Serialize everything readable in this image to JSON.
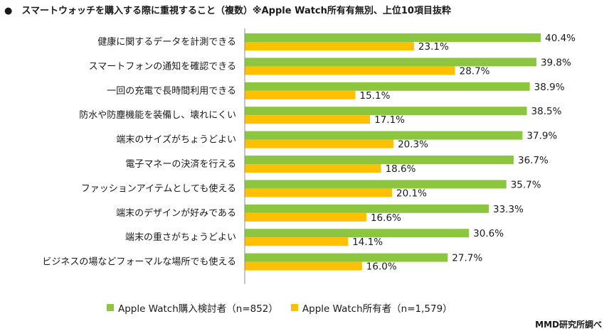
{
  "title": "●　スマートウォッチを購入する際に重視すること（複数）※Apple Watch所有有無別、上位10項目抜粋",
  "credit": "MMD研究所調べ",
  "colors": {
    "series_1": "#8cc63f",
    "series_2": "#ffc000"
  },
  "chart_data": {
    "type": "bar",
    "orientation": "horizontal",
    "categories": [
      "健康に関するデータを計測できる",
      "スマートフォンの通知を確認できる",
      "一回の充電で長時間利用できる",
      "防水や防塵機能を装備し、壊れにくい",
      "端末のサイズがちょうどよい",
      "電子マネーの決済を行える",
      "ファッションアイテムとしても使える",
      "端末のデザインが好みである",
      "端末の重さがちょうどよい",
      "ビジネスの場などフォーマルな場所でも使える"
    ],
    "series": [
      {
        "name": "Apple Watch購入検討者（n=852）",
        "values": [
          40.4,
          39.8,
          38.9,
          38.5,
          37.9,
          36.7,
          35.7,
          33.3,
          30.6,
          27.7
        ],
        "labels": [
          "40.4%",
          "39.8%",
          "38.9%",
          "38.5%",
          "37.9%",
          "36.7%",
          "35.7%",
          "33.3%",
          "30.6%",
          "27.7%"
        ]
      },
      {
        "name": "Apple Watch所有者（n=1,579）",
        "values": [
          23.1,
          28.7,
          15.1,
          17.1,
          20.3,
          18.6,
          20.1,
          16.6,
          14.1,
          16.0
        ],
        "labels": [
          "23.1%",
          "28.7%",
          "15.1%",
          "17.1%",
          "20.3%",
          "18.6%",
          "20.1%",
          "16.6%",
          "14.1%",
          "16.0%"
        ]
      }
    ],
    "xlim": [
      0,
      50
    ],
    "grid": false,
    "legend_position": "bottom"
  }
}
